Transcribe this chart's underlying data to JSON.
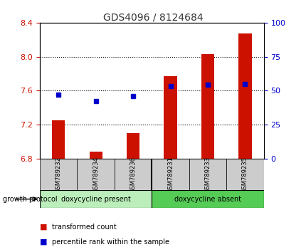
{
  "title": "GDS4096 / 8124684",
  "samples": [
    "GSM789232",
    "GSM789234",
    "GSM789236",
    "GSM789231",
    "GSM789233",
    "GSM789235"
  ],
  "red_values": [
    7.25,
    6.88,
    7.1,
    7.77,
    8.03,
    8.27
  ],
  "blue_values": [
    7.55,
    7.48,
    7.54,
    7.65,
    7.67,
    7.68
  ],
  "ylim_left": [
    6.8,
    8.4
  ],
  "ylim_right": [
    0,
    100
  ],
  "yticks_left": [
    6.8,
    7.2,
    7.6,
    8.0,
    8.4
  ],
  "yticks_right": [
    0,
    25,
    50,
    75,
    100
  ],
  "bar_bottom": 6.8,
  "groups": [
    {
      "label": "doxycycline present",
      "start": 0,
      "end": 3,
      "color": "#aaffaa"
    },
    {
      "label": "doxycycline absent",
      "start": 3,
      "end": 6,
      "color": "#55dd55"
    }
  ],
  "group_label": "growth protocol",
  "legend_red": "transformed count",
  "legend_blue": "percentile rank within the sample",
  "red_color": "#cc1100",
  "blue_color": "#0000cc",
  "bar_width": 0.35,
  "title_color": "#333333",
  "left_tick_color": "#cc1100",
  "right_tick_color": "#0000cc"
}
